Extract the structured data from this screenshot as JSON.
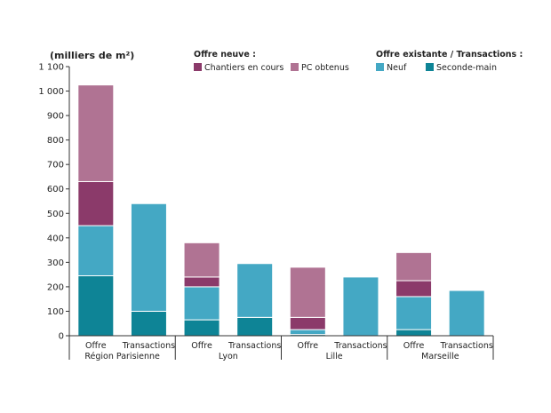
{
  "chart_data": {
    "type": "bar",
    "stacked": true,
    "ylabel": "(milliers de m²)",
    "ylim": [
      0,
      1100
    ],
    "yticks": [
      0,
      100,
      200,
      300,
      400,
      500,
      600,
      700,
      800,
      900,
      1000,
      1100
    ],
    "ytick_labels": [
      "0",
      "100",
      "200",
      "300",
      "400",
      "500",
      "600",
      "700",
      "800",
      "900",
      "1 000",
      "1 100"
    ],
    "grid": false,
    "legend": {
      "placement": "top",
      "groups": [
        {
          "title": "Offre neuve :",
          "entries": [
            "Chantiers en cours",
            "PC obtenus"
          ]
        },
        {
          "title": "Offre existante / Transactions :",
          "entries": [
            "Neuf",
            "Seconde-main"
          ]
        }
      ]
    },
    "groups": [
      "Région Parisienne",
      "Lyon",
      "Lille",
      "Marseille"
    ],
    "categories": [
      "Offre",
      "Transactions",
      "Offre",
      "Transactions",
      "Offre",
      "Transactions",
      "Offre",
      "Transactions"
    ],
    "series": [
      {
        "name": "Seconde-main",
        "color": "#0e8496",
        "values": [
          245,
          100,
          65,
          75,
          5,
          0,
          25,
          0
        ]
      },
      {
        "name": "Neuf",
        "color": "#44a8c4",
        "values": [
          205,
          440,
          135,
          220,
          20,
          240,
          135,
          185
        ]
      },
      {
        "name": "Chantiers en cours",
        "color": "#8b3a6a",
        "values": [
          180,
          0,
          40,
          0,
          50,
          0,
          65,
          0
        ]
      },
      {
        "name": "PC obtenus",
        "color": "#b07393",
        "values": [
          395,
          0,
          140,
          0,
          205,
          0,
          115,
          0
        ]
      }
    ]
  }
}
